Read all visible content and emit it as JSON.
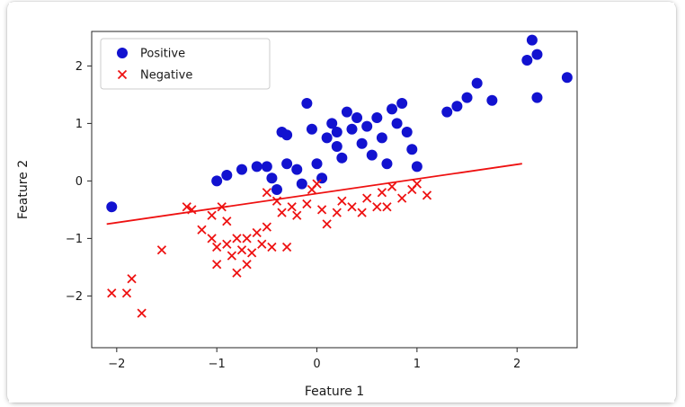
{
  "window": {
    "background": "#ffffff",
    "figure_background": "#ffffff"
  },
  "chart_data": {
    "type": "scatter",
    "title": "",
    "xlabel": "Feature 1",
    "ylabel": "Feature 2",
    "xlim": [
      -2.25,
      2.6
    ],
    "ylim": [
      -2.9,
      2.6
    ],
    "grid": false,
    "xticks": [
      -2,
      -1,
      0,
      1,
      2
    ],
    "xtick_labels": [
      "−2",
      "−1",
      "0",
      "1",
      "2"
    ],
    "yticks": [
      -2,
      -1,
      0,
      1,
      2
    ],
    "ytick_labels": [
      "−2",
      "−1",
      "0",
      "1",
      "2"
    ],
    "legend": {
      "position": "upper-left",
      "entries": [
        "Positive",
        "Negative"
      ]
    },
    "series": [
      {
        "name": "Positive",
        "marker": "circle",
        "color": "#1212d0",
        "points": [
          [
            -2.05,
            -0.45
          ],
          [
            -1.0,
            0.0
          ],
          [
            -0.9,
            0.1
          ],
          [
            -0.75,
            0.2
          ],
          [
            -0.6,
            0.25
          ],
          [
            -0.5,
            0.25
          ],
          [
            -0.45,
            0.05
          ],
          [
            -0.4,
            -0.15
          ],
          [
            -0.35,
            0.85
          ],
          [
            -0.3,
            0.8
          ],
          [
            -0.3,
            0.3
          ],
          [
            -0.2,
            0.2
          ],
          [
            -0.15,
            -0.05
          ],
          [
            -0.1,
            1.35
          ],
          [
            -0.05,
            0.9
          ],
          [
            0.0,
            0.3
          ],
          [
            0.05,
            0.05
          ],
          [
            0.1,
            0.75
          ],
          [
            0.15,
            1.0
          ],
          [
            0.2,
            0.85
          ],
          [
            0.2,
            0.6
          ],
          [
            0.25,
            0.4
          ],
          [
            0.3,
            1.2
          ],
          [
            0.35,
            0.9
          ],
          [
            0.4,
            1.1
          ],
          [
            0.45,
            0.65
          ],
          [
            0.5,
            0.95
          ],
          [
            0.55,
            0.45
          ],
          [
            0.6,
            1.1
          ],
          [
            0.65,
            0.75
          ],
          [
            0.7,
            0.3
          ],
          [
            0.75,
            1.25
          ],
          [
            0.8,
            1.0
          ],
          [
            0.85,
            1.35
          ],
          [
            0.9,
            0.85
          ],
          [
            0.95,
            0.55
          ],
          [
            1.0,
            0.25
          ],
          [
            1.3,
            1.2
          ],
          [
            1.4,
            1.3
          ],
          [
            1.5,
            1.45
          ],
          [
            1.6,
            1.7
          ],
          [
            1.75,
            1.4
          ],
          [
            2.1,
            2.1
          ],
          [
            2.15,
            2.45
          ],
          [
            2.2,
            2.2
          ],
          [
            2.2,
            1.45
          ],
          [
            2.5,
            1.8
          ]
        ]
      },
      {
        "name": "Negative",
        "marker": "x",
        "color": "#ee1111",
        "points": [
          [
            -2.05,
            -1.95
          ],
          [
            -1.9,
            -1.95
          ],
          [
            -1.85,
            -1.7
          ],
          [
            -1.75,
            -2.3
          ],
          [
            -1.55,
            -1.2
          ],
          [
            -1.3,
            -0.45
          ],
          [
            -1.25,
            -0.5
          ],
          [
            -1.15,
            -0.85
          ],
          [
            -1.05,
            -0.6
          ],
          [
            -1.05,
            -1.0
          ],
          [
            -1.0,
            -1.15
          ],
          [
            -1.0,
            -1.45
          ],
          [
            -0.95,
            -0.45
          ],
          [
            -0.9,
            -0.7
          ],
          [
            -0.9,
            -1.1
          ],
          [
            -0.85,
            -1.3
          ],
          [
            -0.8,
            -1.0
          ],
          [
            -0.8,
            -1.6
          ],
          [
            -0.75,
            -1.2
          ],
          [
            -0.7,
            -1.0
          ],
          [
            -0.7,
            -1.45
          ],
          [
            -0.65,
            -1.25
          ],
          [
            -0.6,
            -0.9
          ],
          [
            -0.55,
            -1.1
          ],
          [
            -0.5,
            -0.2
          ],
          [
            -0.5,
            -0.8
          ],
          [
            -0.45,
            -1.15
          ],
          [
            -0.4,
            -0.35
          ],
          [
            -0.35,
            -0.55
          ],
          [
            -0.3,
            -1.15
          ],
          [
            -0.25,
            -0.45
          ],
          [
            -0.2,
            -0.6
          ],
          [
            -0.1,
            -0.4
          ],
          [
            -0.05,
            -0.15
          ],
          [
            0.0,
            -0.05
          ],
          [
            0.05,
            -0.5
          ],
          [
            0.1,
            -0.75
          ],
          [
            0.2,
            -0.55
          ],
          [
            0.25,
            -0.35
          ],
          [
            0.35,
            -0.45
          ],
          [
            0.45,
            -0.55
          ],
          [
            0.5,
            -0.3
          ],
          [
            0.6,
            -0.45
          ],
          [
            0.65,
            -0.2
          ],
          [
            0.7,
            -0.45
          ],
          [
            0.75,
            -0.1
          ],
          [
            0.85,
            -0.3
          ],
          [
            0.95,
            -0.15
          ],
          [
            1.0,
            -0.05
          ],
          [
            1.1,
            -0.25
          ]
        ]
      }
    ],
    "decision_boundary": {
      "color": "#ee1111",
      "x": [
        -2.1,
        2.05
      ],
      "y": [
        -0.75,
        0.3
      ]
    }
  }
}
